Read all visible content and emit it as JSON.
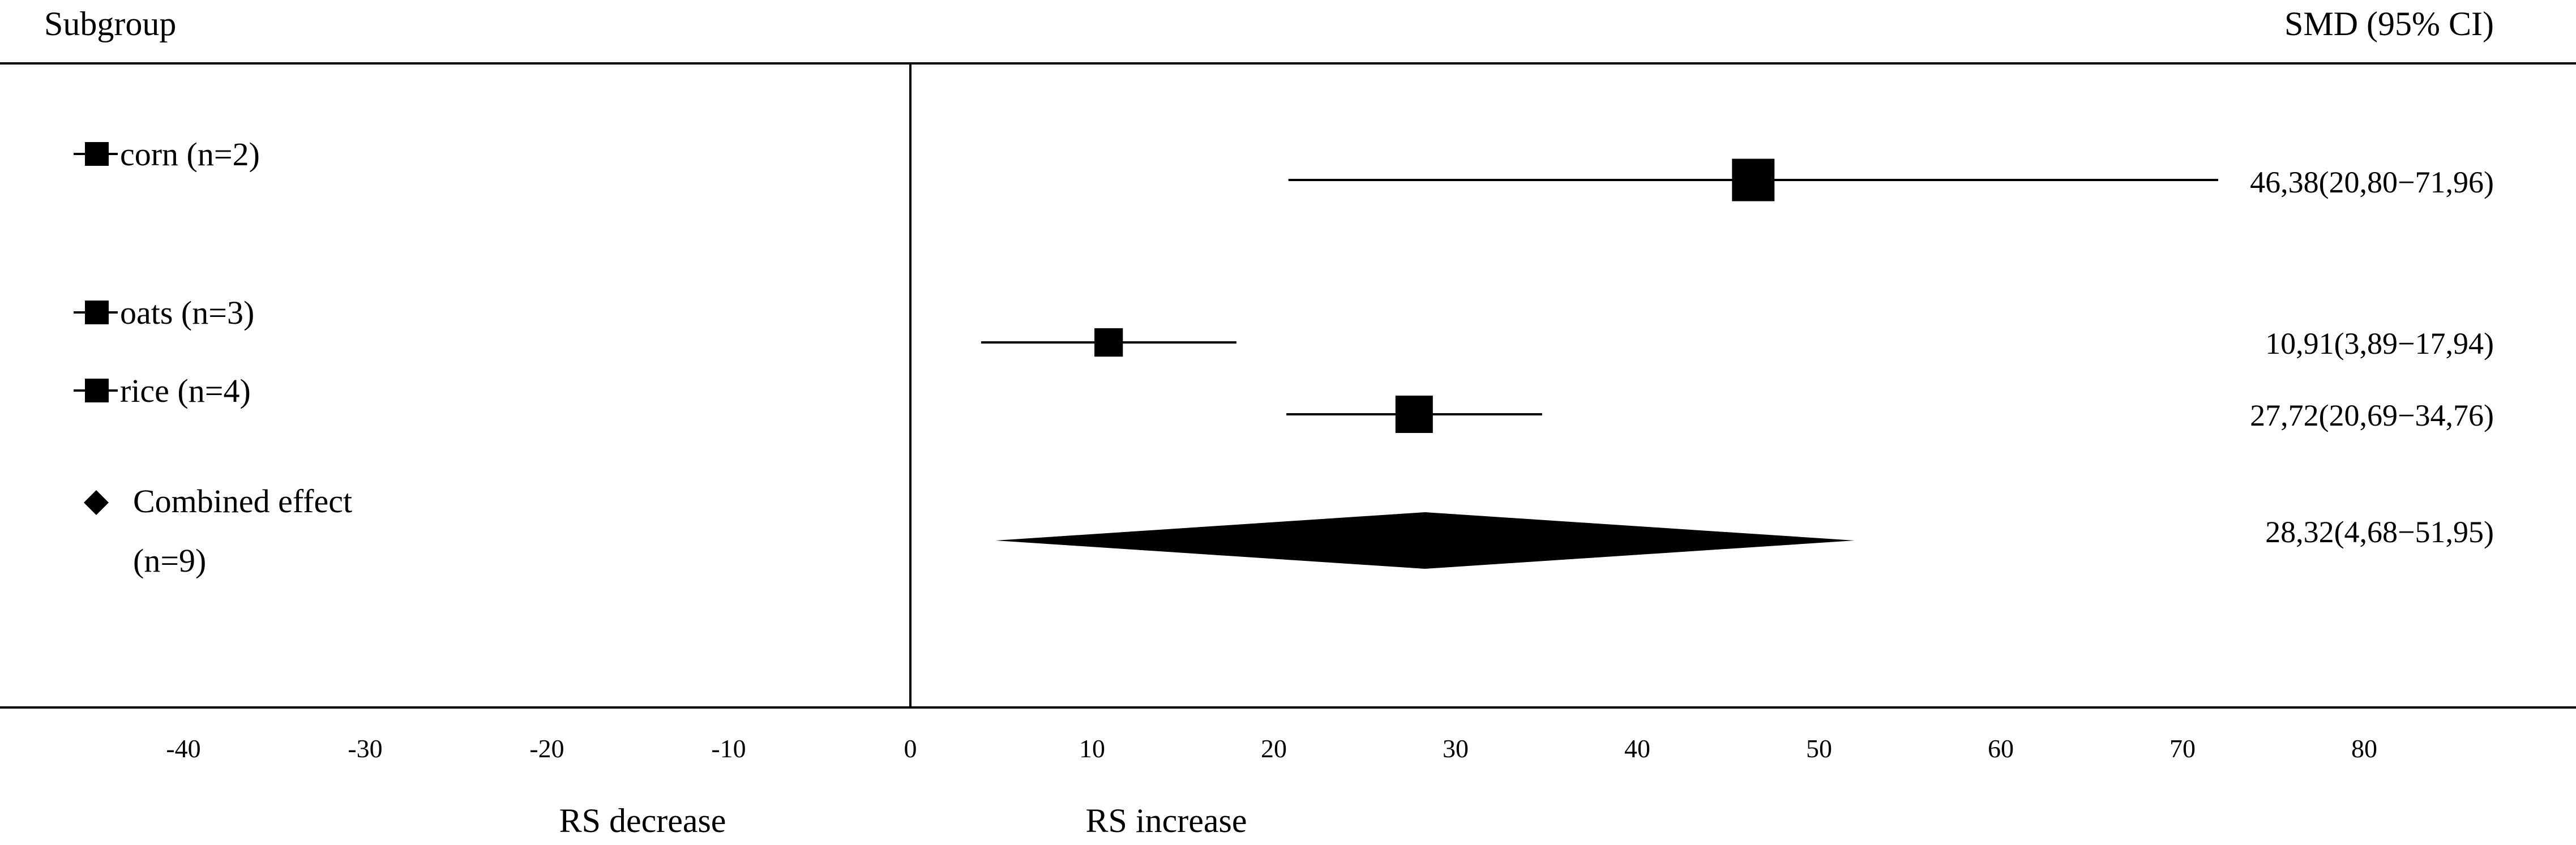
{
  "header": {
    "subgroup_label": "Subgroup",
    "effect_label": "SMD (95% CI)"
  },
  "chart_data": {
    "type": "forest",
    "xlim": [
      -45,
      90
    ],
    "x_ticks": [
      -40,
      -30,
      -20,
      -10,
      0,
      10,
      20,
      30,
      40,
      50,
      60,
      70,
      80
    ],
    "reference_line": 0,
    "grid": false,
    "direction_labels": {
      "left": "RS decrease",
      "right": "RS increase"
    },
    "subgroups": [
      {
        "label": "corn (n=2)",
        "smd": 46.38,
        "ci_low": 20.8,
        "ci_high": 71.96,
        "ci_text": "46,38(20,80−71,96)",
        "weight": 1.0
      },
      {
        "label": "oats (n=3)",
        "smd": 10.91,
        "ci_low": 3.89,
        "ci_high": 17.94,
        "ci_text": "10,91(3,89−17,94)",
        "weight": 0.45
      },
      {
        "label": "rice (n=4)",
        "smd": 27.72,
        "ci_low": 20.69,
        "ci_high": 34.76,
        "ci_text": "27,72(20,69−34,76)",
        "weight": 0.8
      }
    ],
    "combined": {
      "label_line1": "Combined effect",
      "label_line2": "(n=9)",
      "smd": 28.32,
      "ci_low": 4.68,
      "ci_high": 51.95,
      "ci_text": "28,32(4,68−51,95)"
    }
  }
}
